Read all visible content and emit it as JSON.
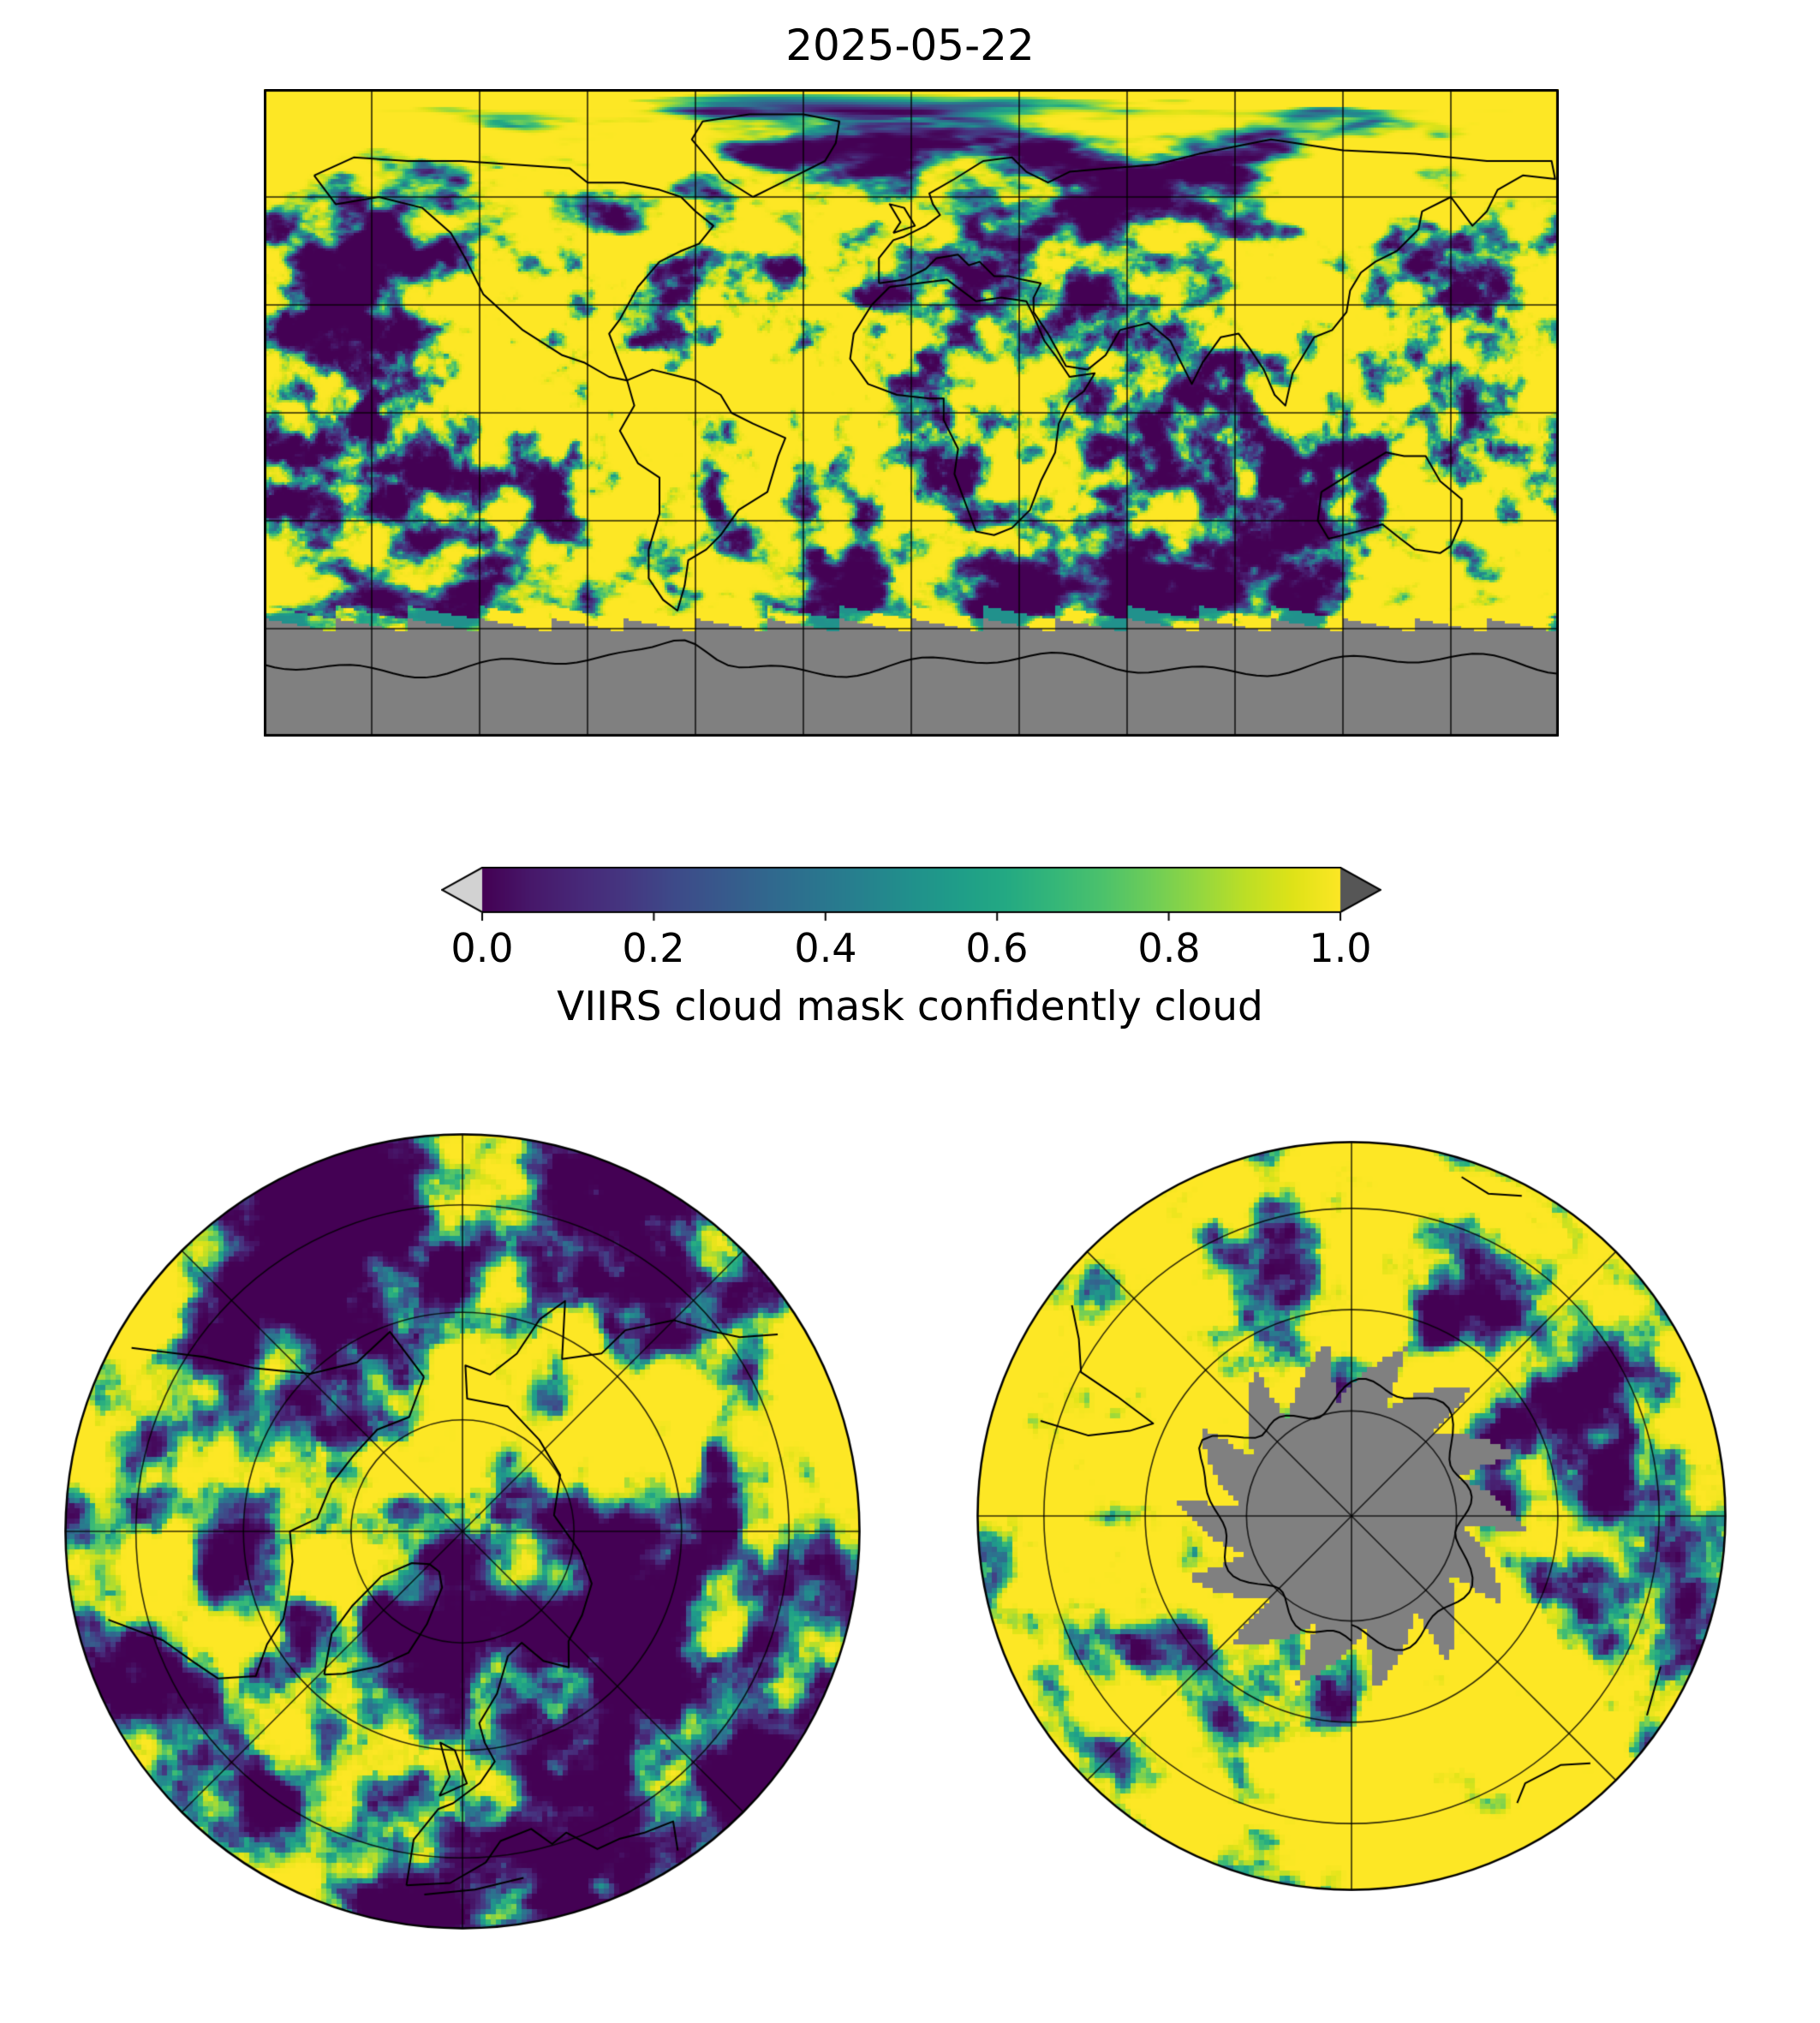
{
  "title": "2025-05-22",
  "colorbar": {
    "label": "VIIRS cloud mask confidently cloud",
    "ticks": [
      "0.0",
      "0.2",
      "0.4",
      "0.6",
      "0.8",
      "1.0"
    ],
    "colormap": "viridis",
    "under_color": "#d2d2d2",
    "over_color": "#565656",
    "nodata_color": "#808080"
  },
  "chart_data": {
    "type": "heatmap",
    "title": "2025-05-22",
    "variable": "VIIRS cloud mask confidently cloud",
    "value_range": [
      0,
      1
    ],
    "colormap": "viridis",
    "colorbar_ticks": [
      0.0,
      0.2,
      0.4,
      0.6,
      0.8,
      1.0
    ],
    "colorbar_extend": "both",
    "colorbar_orientation": "horizontal",
    "nodata": "gray no-data region (unlit polar night): band south of ~58S with sawtooth swath edge in the global panel; jagged pinwheel region over Antarctica in the south polar panel",
    "panels": [
      {
        "name": "global",
        "projection": "equirectangular",
        "lon_range": [
          -180,
          180
        ],
        "lat_range": [
          -90,
          90
        ],
        "gridline_spacing_deg": 30,
        "coastlines": true,
        "description": "Cloud-mask fraction field, mostly near 1 (yellow) with clear-sky patches near 0 (dark purple) over e.g. central Africa, the Middle East/central Asia and subtropical oceans"
      },
      {
        "name": "north_polar",
        "projection": "north polar azimuthal",
        "outer_latitude_deg": 30,
        "parallel_circles": 3,
        "meridian_spacing_deg": 45,
        "coastlines": true,
        "description": "Mixed cloudy/clear pattern over the Arctic with extensive clear (purple) patches"
      },
      {
        "name": "south_polar",
        "projection": "south polar azimuthal",
        "outer_latitude_deg": -30,
        "parallel_circles": 3,
        "meridian_spacing_deg": 45,
        "coastlines": true,
        "description": "Predominantly cloudy (yellow) southern-ocean ring around a gray polar-night no-data region covering Antarctica"
      }
    ]
  }
}
